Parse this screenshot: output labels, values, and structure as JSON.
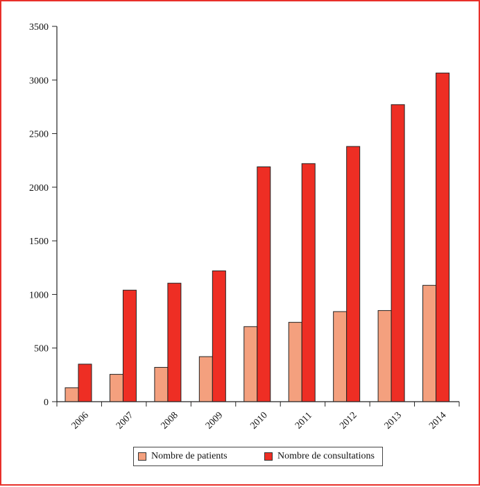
{
  "chart_data": {
    "type": "bar",
    "categories": [
      "2006",
      "2007",
      "2008",
      "2009",
      "2010",
      "2011",
      "2012",
      "2013",
      "2014"
    ],
    "series": [
      {
        "name": "Nombre de patients",
        "color": "#f4a07e",
        "values": [
          130,
          255,
          320,
          420,
          700,
          740,
          840,
          850,
          1085
        ]
      },
      {
        "name": "Nombre de consultations",
        "color": "#ee2e24",
        "values": [
          350,
          1040,
          1105,
          1220,
          2190,
          2220,
          2380,
          2770,
          3065
        ]
      }
    ],
    "yticks": [
      0,
      500,
      1000,
      1500,
      2000,
      2500,
      3000,
      3500
    ],
    "ylim": [
      0,
      3500
    ],
    "grid": false,
    "legend_position": "bottom",
    "frame_color": "#e8302a"
  }
}
